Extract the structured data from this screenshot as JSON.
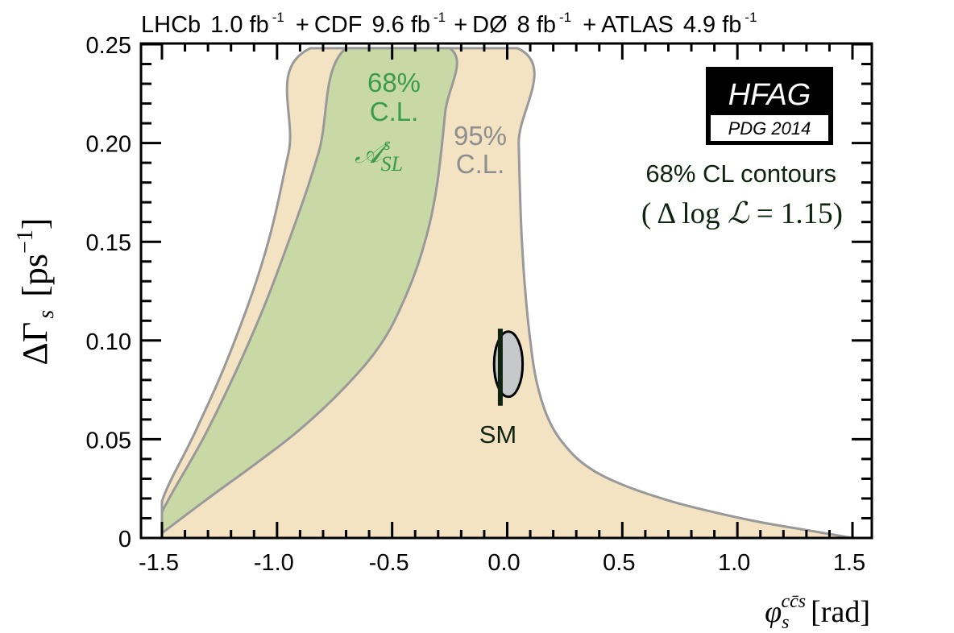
{
  "chart_data": {
    "type": "area",
    "title": "LHCb  1.0 fb⁻¹ + CDF  9.6 fb⁻¹ + DØ  8 fb⁻¹ + ATLAS  4.9 fb⁻¹",
    "title_parts": [
      {
        "label": "LHCb",
        "lumi": "1.0 fb",
        "exp": "-1",
        "sep": ""
      },
      {
        "label": "CDF",
        "lumi": "9.6 fb",
        "exp": "-1",
        "sep": "+"
      },
      {
        "label": "DØ",
        "lumi": "8 fb",
        "exp": "-1",
        "sep": "+"
      },
      {
        "label": "ATLAS",
        "lumi": "4.9 fb",
        "exp": "-1",
        "sep": "+"
      }
    ],
    "xlabel": {
      "symbol": "φ",
      "sub": "s",
      "sup": "cc̄s",
      "unit": "[rad]"
    },
    "ylabel": {
      "symbol": "ΔΓ",
      "sub": "s",
      "unit_open": "[ps",
      "unit_sup": "−1",
      "unit_close": "]"
    },
    "xlim": [
      -1.6,
      1.6
    ],
    "ylim": [
      0,
      0.255
    ],
    "xticks": [
      -1.5,
      -1.0,
      -0.5,
      0.0,
      0.5,
      1.0,
      1.5
    ],
    "xtick_labels": [
      "-1.5",
      "-1.0",
      "-0.5",
      "0.0",
      "0.5",
      "1.0",
      "1.5"
    ],
    "yticks": [
      0,
      0.05,
      0.1,
      0.15,
      0.2,
      0.25
    ],
    "ytick_labels": [
      "0",
      "0.05",
      "0.10",
      "0.15",
      "0.20",
      "0.25"
    ],
    "grid": false,
    "series": [
      {
        "name": "95% C.L. A_SL^s",
        "fill": "#f3e3c3",
        "stroke": "#999999",
        "points": [
          [
            -1.5,
            0.0
          ],
          [
            -1.5,
            0.0185
          ],
          [
            -1.35,
            0.055
          ],
          [
            -1.2,
            0.095
          ],
          [
            -1.05,
            0.145
          ],
          [
            -0.95,
            0.195
          ],
          [
            -0.855,
            0.248
          ],
          [
            0.045,
            0.248
          ],
          [
            0.05,
            0.2
          ],
          [
            0.06,
            0.16
          ],
          [
            0.075,
            0.13
          ],
          [
            0.1,
            0.1
          ],
          [
            0.13,
            0.078
          ],
          [
            0.18,
            0.06
          ],
          [
            0.25,
            0.047
          ],
          [
            0.35,
            0.036
          ],
          [
            0.5,
            0.027
          ],
          [
            0.7,
            0.019
          ],
          [
            0.9,
            0.013
          ],
          [
            1.1,
            0.008
          ],
          [
            1.3,
            0.004
          ],
          [
            1.5,
            0.0
          ]
        ]
      },
      {
        "name": "68% C.L. A_SL^s",
        "fill": "#c8d9a6",
        "stroke": "#999999",
        "points": [
          [
            -1.5,
            0.0025
          ],
          [
            -1.5,
            0.013
          ],
          [
            -1.3,
            0.055
          ],
          [
            -1.1,
            0.105
          ],
          [
            -0.95,
            0.15
          ],
          [
            -0.82,
            0.195
          ],
          [
            -0.7,
            0.248
          ],
          [
            -0.25,
            0.248
          ],
          [
            -0.27,
            0.215
          ],
          [
            -0.31,
            0.175
          ],
          [
            -0.37,
            0.145
          ],
          [
            -0.45,
            0.12
          ],
          [
            -0.55,
            0.098
          ],
          [
            -0.7,
            0.077
          ],
          [
            -0.9,
            0.055
          ],
          [
            -1.1,
            0.037
          ],
          [
            -1.3,
            0.02
          ],
          [
            -1.5,
            0.0025
          ]
        ]
      }
    ],
    "sm": {
      "label": "SM",
      "x": -0.03,
      "y_low": 0.067,
      "y_high": 0.106
    },
    "contour": {
      "center": [
        0.005,
        0.088
      ],
      "rx": 0.062,
      "ry": 0.0165,
      "fill": "#c6c8c9",
      "stroke": "#000000"
    },
    "annotations": {
      "green_line1": "68%",
      "green_line2": "C.L.",
      "green_math": "𝒜",
      "green_math_sup": "s",
      "green_math_sub": "SL",
      "gray_line1": "95%",
      "gray_line2": "C.L.",
      "contour_line1": "68% CL contours",
      "contour_line2_open": "( Δ log ",
      "contour_line2_script": "ℒ",
      "contour_line2_close": " = 1.15)"
    },
    "logo": {
      "top": "HFAG",
      "bottom": "PDG 2014"
    },
    "colors": {
      "green_text": "#3a9b4f",
      "gray_text": "#8e8e8e",
      "dark_text": "#0e2410",
      "frame": "#000000"
    }
  }
}
